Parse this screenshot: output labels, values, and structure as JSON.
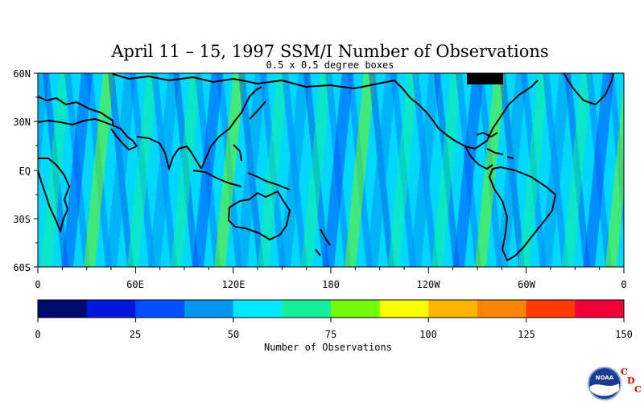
{
  "title": "April 11 – 15, 1997 SSM/I Number of Observations",
  "subtitle": "0.5 x 0.5 degree boxes",
  "map": {
    "lat_labels": [
      "60N",
      "30N",
      "EQ",
      "30S",
      "60S"
    ],
    "lon_labels": [
      "0",
      "60E",
      "120E",
      "180",
      "120W",
      "60W",
      "0"
    ],
    "lat_range": [
      -60,
      60
    ],
    "lon_range": [
      0,
      360
    ],
    "projection": "cylindrical equidistant, centered on 180"
  },
  "colorbar": {
    "label": "Number of Observations",
    "tick_labels": [
      "0",
      "25",
      "50",
      "75",
      "100",
      "125",
      "150"
    ],
    "range": [
      0,
      150
    ],
    "colors": [
      "#000a6e",
      "#0018dc",
      "#0050ff",
      "#0096f0",
      "#00eaff",
      "#14f09a",
      "#74f80c",
      "#fcfc00",
      "#fcb400",
      "#fc8400",
      "#fc3c00",
      "#f0003c"
    ]
  },
  "logo": {
    "agency": "NOAA",
    "letters": [
      "C",
      "D",
      "C"
    ]
  }
}
